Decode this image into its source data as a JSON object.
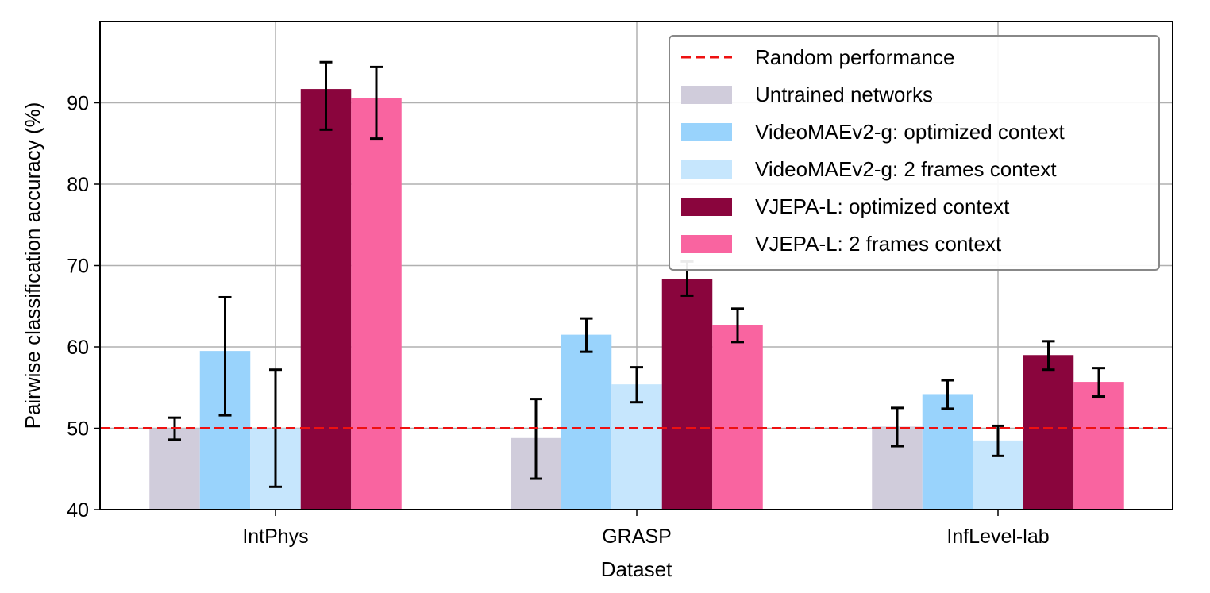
{
  "chart_data": {
    "type": "bar",
    "title": "",
    "xlabel": "Dataset",
    "ylabel": "Pairwise classification accuracy (%)",
    "ylim": [
      40,
      100
    ],
    "yticks": [
      40,
      50,
      60,
      70,
      80,
      90
    ],
    "grid": true,
    "legend_position": "top-right",
    "categories": [
      "IntPhys",
      "GRASP",
      "InfLevel-lab"
    ],
    "reference_line": {
      "name": "Random performance",
      "value": 50,
      "color": "#ee1111",
      "style": "dashed"
    },
    "series": [
      {
        "name": "Untrained networks",
        "color": "#d0ccdb",
        "values": [
          50.0,
          48.8,
          50.2
        ],
        "err_low": [
          48.6,
          43.8,
          47.8
        ],
        "err_high": [
          51.3,
          53.6,
          52.5
        ]
      },
      {
        "name": "VideoMAEv2-g: optimized context",
        "color": "#99d3fc",
        "values": [
          59.5,
          61.5,
          54.2
        ],
        "err_low": [
          51.6,
          59.4,
          52.4
        ],
        "err_high": [
          66.1,
          63.5,
          55.9
        ]
      },
      {
        "name": "VideoMAEv2-g: 2 frames context",
        "color": "#c6e6fd",
        "values": [
          50.0,
          55.4,
          48.5
        ],
        "err_low": [
          42.8,
          53.2,
          46.6
        ],
        "err_high": [
          57.2,
          57.5,
          50.3
        ]
      },
      {
        "name": "VJEPA-L: optimized context",
        "color": "#8a053d",
        "values": [
          91.7,
          68.3,
          59.0
        ],
        "err_low": [
          86.7,
          66.3,
          57.2
        ],
        "err_high": [
          95.0,
          70.5,
          60.7
        ]
      },
      {
        "name": "VJEPA-L: 2 frames context",
        "color": "#f964a0",
        "values": [
          90.6,
          62.7,
          55.7
        ],
        "err_low": [
          85.6,
          60.6,
          53.9
        ],
        "err_high": [
          94.4,
          64.7,
          57.4
        ]
      }
    ]
  }
}
